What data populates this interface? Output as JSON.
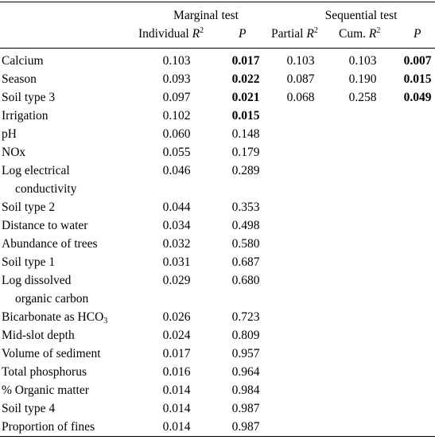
{
  "header": {
    "group_marginal": "Marginal test",
    "group_sequential": "Sequential test",
    "col_individual_r2_prefix": "Individual ",
    "col_partial_r2_prefix": "Partial ",
    "col_cum_r2_prefix": "Cum. ",
    "r_symbol": "R",
    "sup_2": "2",
    "p_symbol": "P"
  },
  "rows": [
    {
      "label": [
        "Calcium"
      ],
      "ind_r2": "0.103",
      "p": "0.017",
      "p_bold": true,
      "partial_r2": "0.103",
      "cum_r2": "0.103",
      "seq_p": "0.007"
    },
    {
      "label": [
        "Season"
      ],
      "ind_r2": "0.093",
      "p": "0.022",
      "p_bold": true,
      "partial_r2": "0.087",
      "cum_r2": "0.190",
      "seq_p": "0.015"
    },
    {
      "label": [
        "Soil type 3"
      ],
      "ind_r2": "0.097",
      "p": "0.021",
      "p_bold": true,
      "partial_r2": "0.068",
      "cum_r2": "0.258",
      "seq_p": "0.049"
    },
    {
      "label": [
        "Irrigation"
      ],
      "ind_r2": "0.102",
      "p": "0.015",
      "p_bold": true
    },
    {
      "label": [
        "pH"
      ],
      "ind_r2": "0.060",
      "p": "0.148"
    },
    {
      "label": [
        "NOx"
      ],
      "ind_r2": "0.055",
      "p": "0.179"
    },
    {
      "label": [
        "Log electrical",
        "conductivity"
      ],
      "ind_r2": "0.046",
      "p": "0.289"
    },
    {
      "label": [
        "Soil type 2"
      ],
      "ind_r2": "0.044",
      "p": "0.353"
    },
    {
      "label": [
        "Distance to water"
      ],
      "ind_r2": "0.034",
      "p": "0.498"
    },
    {
      "label": [
        "Abundance of trees"
      ],
      "ind_r2": "0.032",
      "p": "0.580"
    },
    {
      "label": [
        "Soil type 1"
      ],
      "ind_r2": "0.031",
      "p": "0.687"
    },
    {
      "label": [
        "Log dissolved",
        "organic carbon"
      ],
      "ind_r2": "0.029",
      "p": "0.680"
    },
    {
      "label": [
        "Bicarbonate as HCO"
      ],
      "label_sub": "3",
      "ind_r2": "0.026",
      "p": "0.723"
    },
    {
      "label": [
        "Mid-slot depth"
      ],
      "ind_r2": "0.024",
      "p": "0.809"
    },
    {
      "label": [
        "Volume of sediment"
      ],
      "ind_r2": "0.017",
      "p": "0.957"
    },
    {
      "label": [
        "Total phosphorus"
      ],
      "ind_r2": "0.016",
      "p": "0.964"
    },
    {
      "label": [
        "% Organic matter"
      ],
      "ind_r2": "0.014",
      "p": "0.984"
    },
    {
      "label": [
        "Soil type 4"
      ],
      "ind_r2": "0.014",
      "p": "0.987"
    },
    {
      "label": [
        "Proportion of fines"
      ],
      "ind_r2": "0.014",
      "p": "0.987"
    }
  ]
}
